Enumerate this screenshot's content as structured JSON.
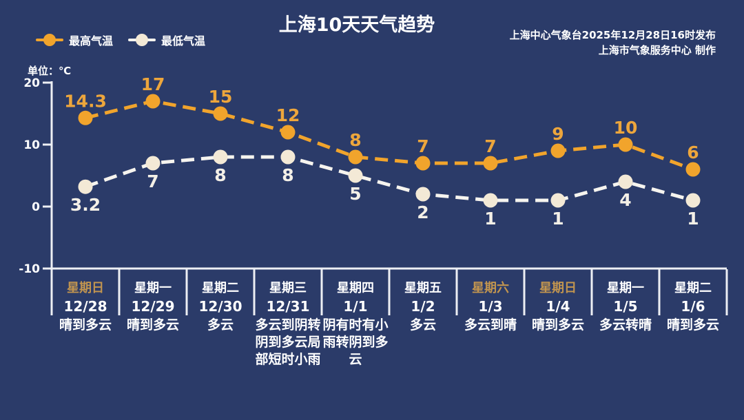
{
  "header": {
    "title": "上海10天天气趋势",
    "source_line1": "上海中心气象台2025年12月28日16时发布",
    "source_line2": "上海市气象服务中心  制作"
  },
  "unit_label": "单位：℃",
  "colors": {
    "background": "#2b3b69",
    "axis": "#edeff4",
    "text": "#ffffff",
    "high_series": "#f1a42c",
    "high_value_label": "#eda63c",
    "low_series_line": "#f6f4ef",
    "low_series_dot": "#f3e9d6",
    "low_value_label": "#f4f0e7",
    "weekday_weekend": "#c2954f"
  },
  "chart_data": {
    "type": "line",
    "title": "上海10天天气趋势",
    "ylabel": "单位：℃",
    "ylim": [
      -10,
      20
    ],
    "yticks": [
      20,
      10,
      0,
      -10
    ],
    "grid": false,
    "line_style": "dashed",
    "legend_position": "top-left",
    "categories": [
      "12/28",
      "12/29",
      "12/30",
      "12/31",
      "1/1",
      "1/2",
      "1/3",
      "1/4",
      "1/5",
      "1/6"
    ],
    "series": [
      {
        "name": "最高气温",
        "values": [
          14.3,
          17,
          15,
          12,
          8,
          7,
          7,
          9,
          10,
          6
        ]
      },
      {
        "name": "最低气温",
        "values": [
          3.2,
          7,
          8,
          8,
          5,
          2,
          1,
          1,
          4,
          1
        ]
      }
    ]
  },
  "days": [
    {
      "weekday": "星期日",
      "date": "12/28",
      "weather": "晴到多云",
      "weekend": true
    },
    {
      "weekday": "星期一",
      "date": "12/29",
      "weather": "晴到多云",
      "weekend": false
    },
    {
      "weekday": "星期二",
      "date": "12/30",
      "weather": "多云",
      "weekend": false
    },
    {
      "weekday": "星期三",
      "date": "12/31",
      "weather": "多云到阴转阴到多云局部短时小雨",
      "weekend": false
    },
    {
      "weekday": "星期四",
      "date": "1/1",
      "weather": "阴有时有小雨转阴到多云",
      "weekend": false
    },
    {
      "weekday": "星期五",
      "date": "1/2",
      "weather": "多云",
      "weekend": false
    },
    {
      "weekday": "星期六",
      "date": "1/3",
      "weather": "多云到晴",
      "weekend": true
    },
    {
      "weekday": "星期日",
      "date": "1/4",
      "weather": "晴到多云",
      "weekend": true
    },
    {
      "weekday": "星期一",
      "date": "1/5",
      "weather": "多云转晴",
      "weekend": false
    },
    {
      "weekday": "星期二",
      "date": "1/6",
      "weather": "晴到多云",
      "weekend": false
    }
  ]
}
